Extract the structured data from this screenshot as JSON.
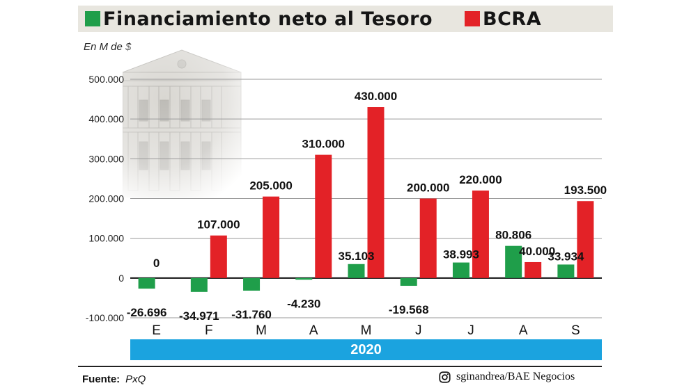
{
  "header": {
    "series_a_label": "Financiamiento neto al Tesoro",
    "series_b_label": "BCRA"
  },
  "colors": {
    "green": "#1f9e4a",
    "red": "#e32227",
    "axis_band": "#1ba3df"
  },
  "unit_label": "En M de $",
  "year_label": "2020",
  "footer": {
    "source_key": "Fuente:",
    "source_value": "PxQ",
    "credit": "sginandrea/BAE Negocios",
    "credit_icon": "instagram-icon"
  },
  "chart_data": {
    "type": "bar",
    "categories": [
      "E",
      "F",
      "M",
      "A",
      "M",
      "J",
      "J",
      "A",
      "S"
    ],
    "series": [
      {
        "name": "Financiamiento neto al Tesoro",
        "color": "#1f9e4a",
        "values": [
          -26696,
          -34971,
          -31760,
          -4230,
          35103,
          -19568,
          38993,
          80806,
          33934
        ],
        "labels": [
          "-26.696",
          "-34.971",
          "-31.760",
          "-4.230",
          "35.103",
          "-19.568",
          "38.993",
          "80.806",
          "33.934"
        ]
      },
      {
        "name": "BCRA",
        "color": "#e32227",
        "values": [
          0,
          107000,
          205000,
          310000,
          430000,
          200000,
          220000,
          40000,
          193500
        ],
        "labels": [
          "0",
          "107.000",
          "205.000",
          "310.000",
          "430.000",
          "200.000",
          "220.000",
          "40.000",
          "193.500"
        ]
      }
    ],
    "yticks": [
      500000,
      400000,
      300000,
      200000,
      100000,
      0,
      -100000
    ],
    "ytick_labels": [
      "500.000",
      "400.000",
      "300.000",
      "200.000",
      "100.000",
      "0",
      "-100.000"
    ],
    "ylim": [
      -100000,
      500000
    ],
    "ylabel": "En M de $",
    "xlabel": "2020",
    "grid": true
  }
}
